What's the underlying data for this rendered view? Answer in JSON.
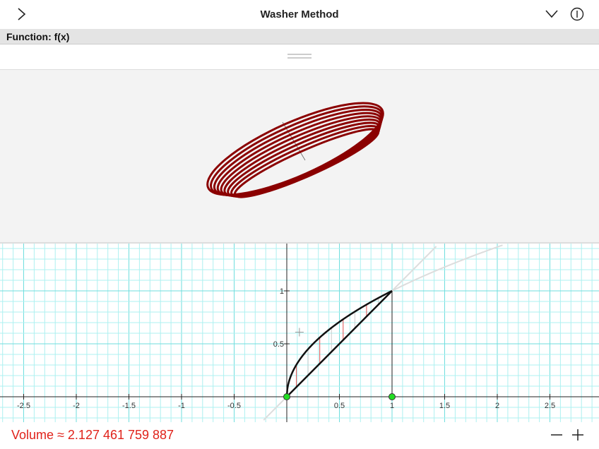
{
  "header": {
    "title": "Washer Method"
  },
  "algebra": {
    "label": "Function: f(x)"
  },
  "graph": {
    "xticks": [
      -2.5,
      -2,
      -1.5,
      -1,
      -0.5,
      0.5,
      1,
      1.5,
      2,
      2.5
    ],
    "yticks": [
      0.5,
      1
    ]
  },
  "footer": {
    "volume": "Volume ≈ 2.127 461 759 887"
  }
}
